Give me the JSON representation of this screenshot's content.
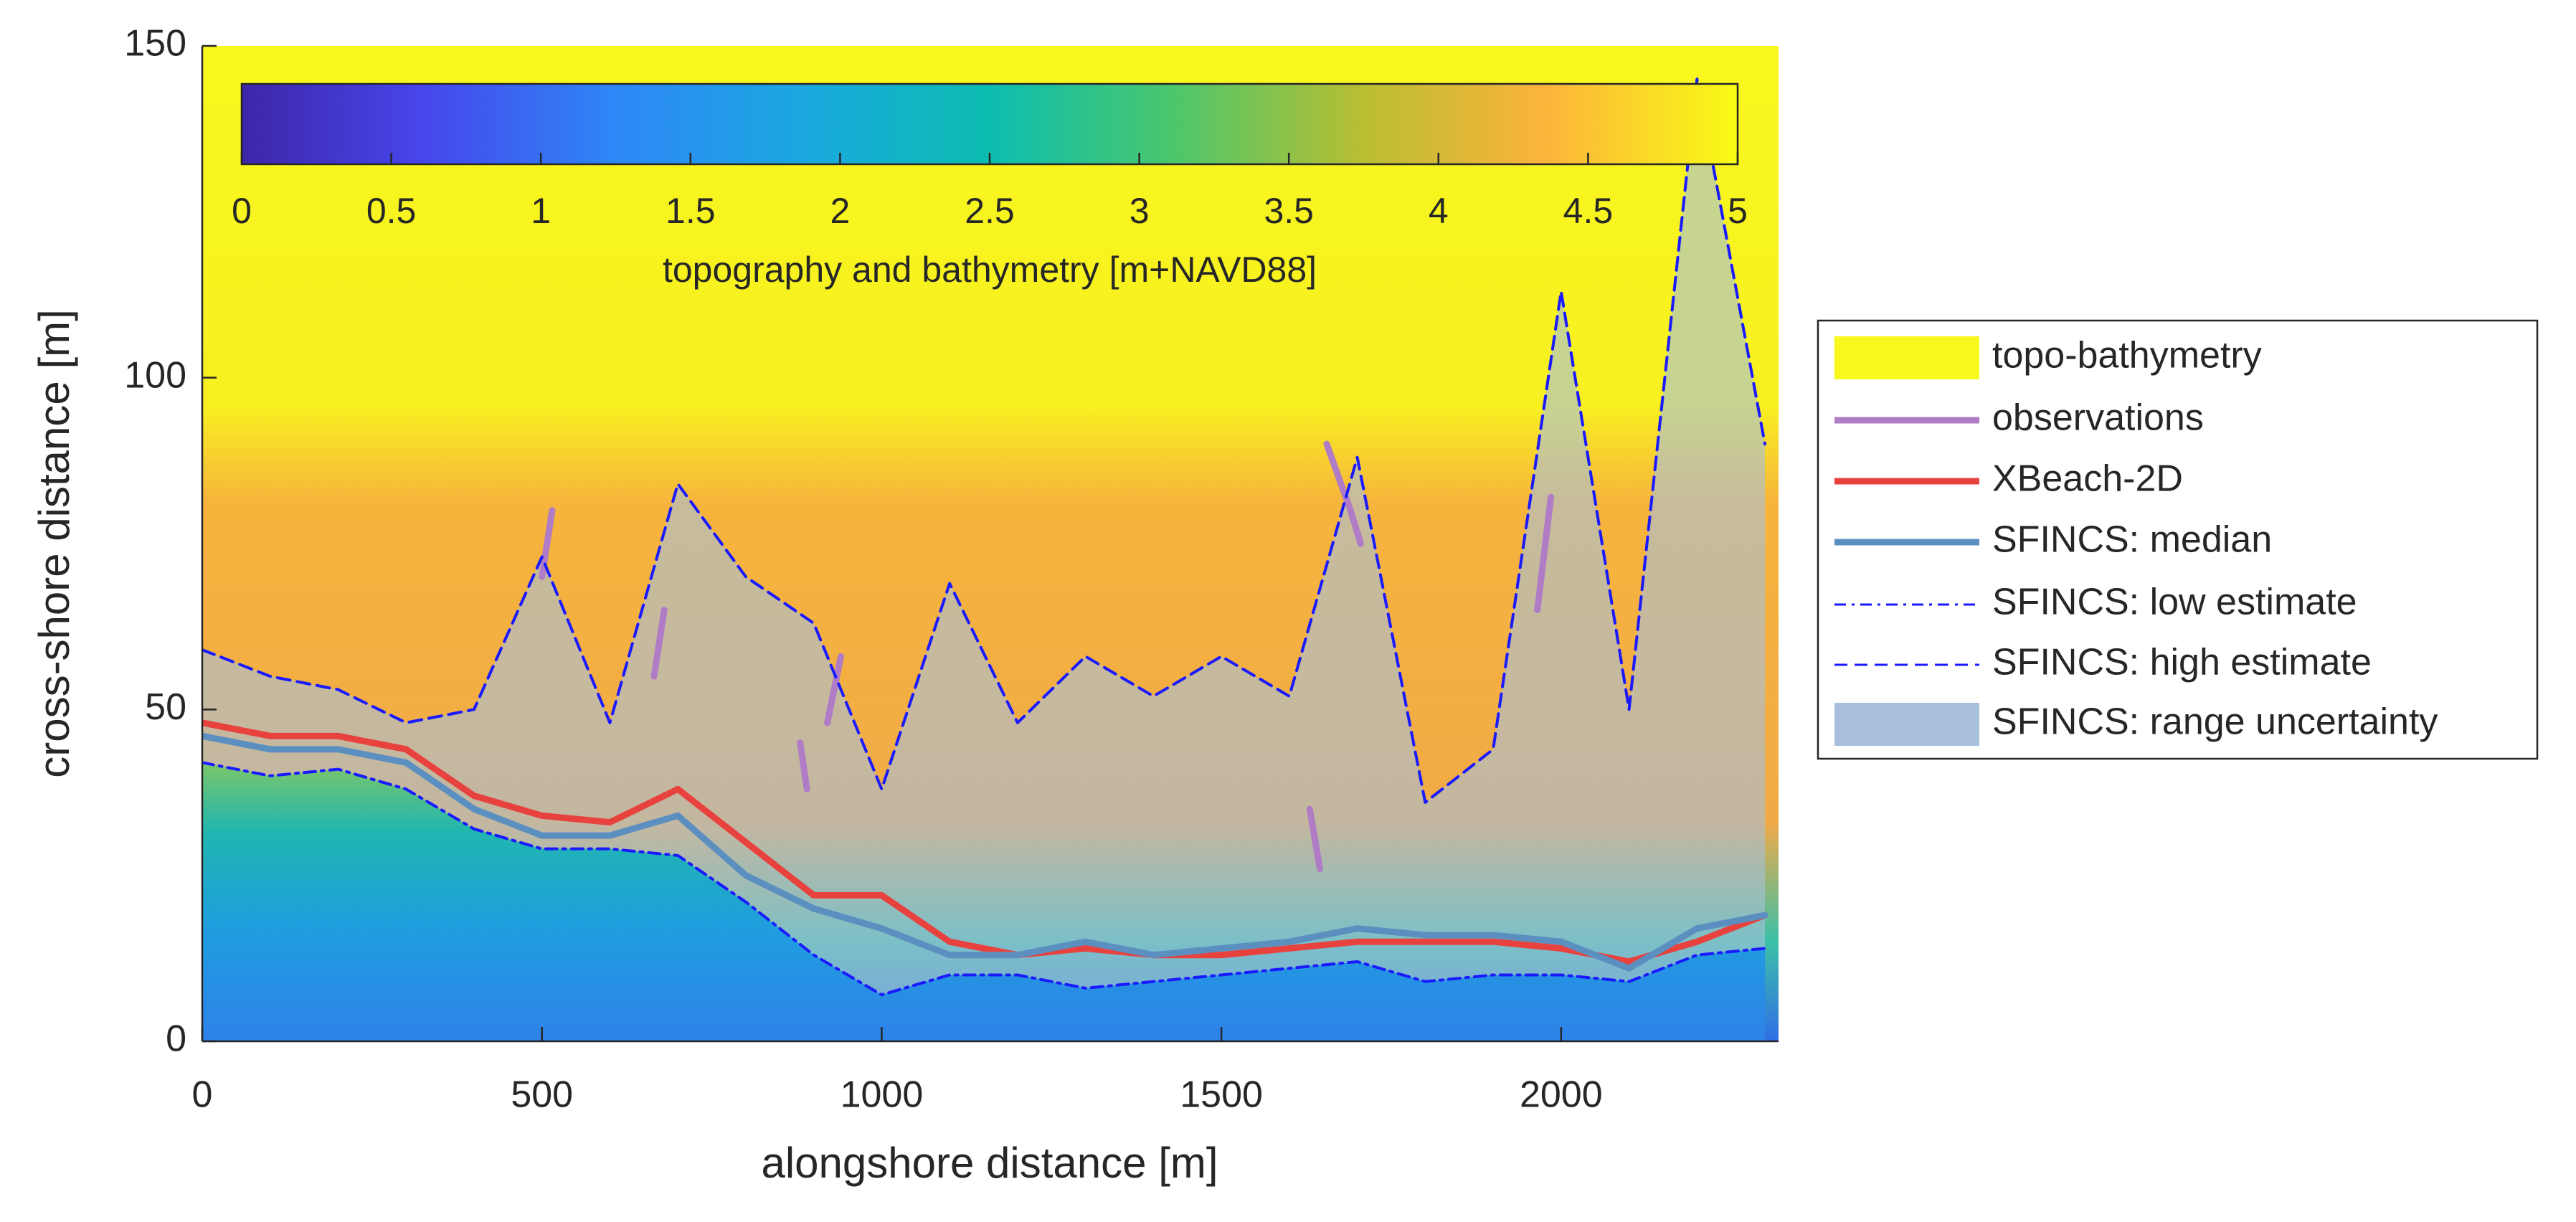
{
  "chart_data": {
    "type": "line",
    "xlabel": "alongshore distance [m]",
    "ylabel": "cross-shore distance [m]",
    "xlim": [
      0,
      2320
    ],
    "ylim": [
      0,
      150
    ],
    "xticks": [
      0,
      500,
      1000,
      1500,
      2000
    ],
    "yticks": [
      0,
      50,
      100,
      150
    ],
    "x": [
      0,
      100,
      200,
      300,
      400,
      500,
      600,
      700,
      800,
      900,
      1000,
      1100,
      1200,
      1300,
      1400,
      1500,
      1600,
      1700,
      1800,
      1900,
      2000,
      2100,
      2200,
      2300
    ],
    "field": {
      "name": "topo-bathymetry",
      "color": "#f8f81e"
    },
    "colorbar": {
      "label": "topography and bathymetry [m+NAVD88]",
      "clim": [
        0,
        5
      ],
      "ticks": [
        0,
        0.5,
        1,
        1.5,
        2,
        2.5,
        3,
        3.5,
        4,
        4.5,
        5
      ]
    },
    "band": {
      "name": "SFINCS: range uncertainty",
      "color": "#a7bfdc"
    },
    "series": [
      {
        "name": "observations",
        "color": "#b07cc6",
        "style": "solid",
        "x": [
          500,
          515,
          null,
          665,
          680,
          null,
          880,
          890,
          null,
          920,
          940,
          null,
          1630,
          1645,
          null,
          1655,
          1690,
          1705,
          null,
          1965,
          1985
        ],
        "values": [
          70,
          80,
          null,
          55,
          65,
          null,
          45,
          38,
          null,
          48,
          58,
          null,
          35,
          26,
          null,
          90,
          80,
          75,
          null,
          65,
          82
        ]
      },
      {
        "name": "XBeach-2D",
        "color": "#e8423f",
        "style": "solid",
        "values": [
          48,
          46,
          46,
          44,
          37,
          34,
          33,
          38,
          30,
          22,
          22,
          15,
          13,
          14,
          13,
          13,
          14,
          15,
          15,
          15,
          14,
          12,
          15,
          19
        ]
      },
      {
        "name": "SFINCS: median",
        "color": "#5b8fc0",
        "style": "solid",
        "values": [
          46,
          44,
          44,
          42,
          35,
          31,
          31,
          34,
          25,
          20,
          17,
          13,
          13,
          15,
          13,
          14,
          15,
          17,
          16,
          16,
          15,
          11,
          17,
          19
        ]
      },
      {
        "name": "SFINCS: low estimate",
        "color": "#1a1aff",
        "style": "dashdot",
        "values": [
          42,
          40,
          41,
          38,
          32,
          29,
          29,
          28,
          21,
          13,
          7,
          10,
          10,
          8,
          9,
          10,
          11,
          12,
          9,
          10,
          10,
          9,
          13,
          14
        ]
      },
      {
        "name": "SFINCS: high estimate",
        "color": "#1a1aff",
        "style": "dashed",
        "values": [
          59,
          55,
          53,
          48,
          50,
          73,
          48,
          84,
          70,
          63,
          38,
          69,
          48,
          58,
          52,
          58,
          52,
          88,
          36,
          44,
          113,
          50,
          145,
          90
        ]
      }
    ]
  }
}
